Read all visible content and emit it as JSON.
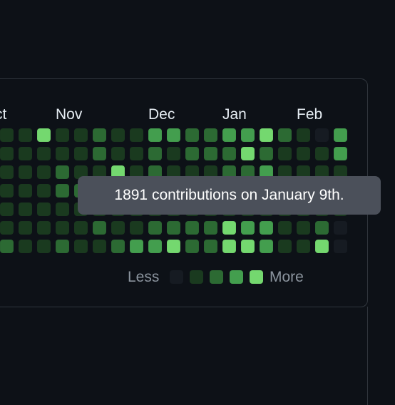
{
  "graph": {
    "months": [
      "ct",
      "Nov",
      "Dec",
      "Jan",
      "Feb"
    ],
    "level_colors": [
      "#161b22",
      "#0e4429",
      "#006d32",
      "#26a641",
      "#39d353"
    ],
    "display_colors": [
      "#161b22",
      "#1a3a1f",
      "#2c6a33",
      "#439e4e",
      "#74d86f"
    ],
    "levels": [
      [
        1,
        1,
        4,
        1,
        1,
        2,
        1,
        1,
        3,
        3,
        2,
        2,
        3,
        3,
        4,
        2,
        1,
        0,
        3
      ],
      [
        1,
        1,
        1,
        1,
        1,
        2,
        1,
        1,
        2,
        1,
        2,
        2,
        2,
        4,
        2,
        1,
        1,
        1,
        3
      ],
      [
        1,
        1,
        1,
        2,
        1,
        1,
        4,
        1,
        2,
        1,
        1,
        1,
        2,
        2,
        3,
        1,
        1,
        1,
        1
      ],
      [
        1,
        1,
        1,
        2,
        2,
        1,
        1,
        1,
        1,
        1,
        1,
        1,
        1,
        1,
        1,
        1,
        1,
        1,
        1
      ],
      [
        1,
        1,
        1,
        1,
        1,
        1,
        1,
        1,
        1,
        1,
        1,
        1,
        1,
        1,
        1,
        1,
        1,
        1,
        1
      ],
      [
        1,
        1,
        1,
        1,
        1,
        2,
        1,
        1,
        2,
        2,
        2,
        2,
        4,
        3,
        3,
        1,
        1,
        2,
        0
      ],
      [
        2,
        1,
        1,
        2,
        1,
        1,
        2,
        3,
        3,
        4,
        2,
        2,
        4,
        4,
        3,
        1,
        1,
        4,
        0
      ]
    ]
  },
  "legend": {
    "less_label": "Less",
    "more_label": "More"
  },
  "tooltip": {
    "text": "1891 contributions on January 9th."
  }
}
